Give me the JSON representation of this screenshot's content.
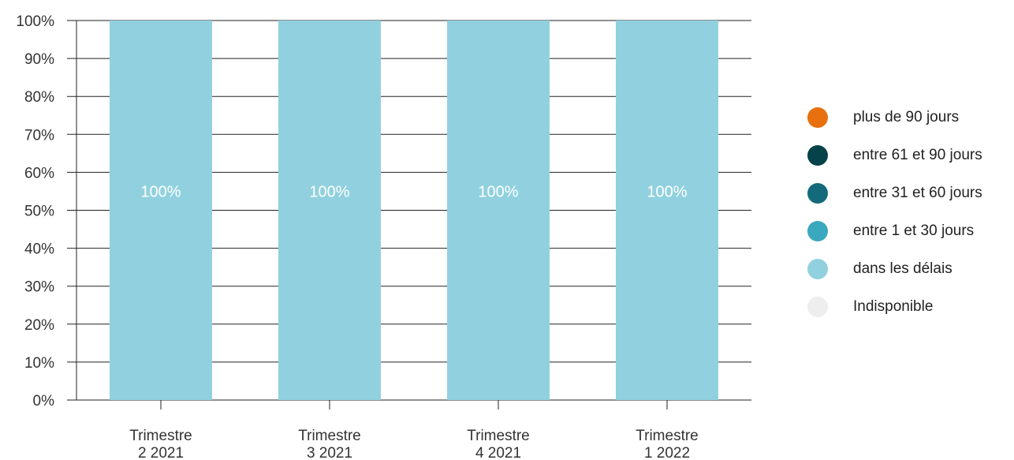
{
  "chart_data": {
    "type": "bar",
    "stacked": true,
    "categories": [
      [
        "Trimestre",
        "2 2021"
      ],
      [
        "Trimestre",
        "3 2021"
      ],
      [
        "Trimestre",
        "4 2021"
      ],
      [
        "Trimestre",
        "1 2022"
      ]
    ],
    "series": [
      {
        "name": "plus de 90 jours",
        "color": "#e8700f",
        "values": [
          0,
          0,
          0,
          0
        ]
      },
      {
        "name": "entre 61 et 90 jours",
        "color": "#06424a",
        "values": [
          0,
          0,
          0,
          0
        ]
      },
      {
        "name": "entre 31 et 60 jours",
        "color": "#136a7a",
        "values": [
          0,
          0,
          0,
          0
        ]
      },
      {
        "name": "entre 1 et 30 jours",
        "color": "#3aa8bf",
        "values": [
          0,
          0,
          0,
          0
        ]
      },
      {
        "name": "dans les délais",
        "color": "#91d1df",
        "values": [
          100,
          100,
          100,
          100
        ]
      },
      {
        "name": "Indisponible",
        "color": "#eeeeee",
        "values": [
          0,
          0,
          0,
          0
        ]
      }
    ],
    "data_labels": [
      "100%",
      "100%",
      "100%",
      "100%"
    ],
    "y_ticks": [
      "0%",
      "10%",
      "20%",
      "30%",
      "40%",
      "50%",
      "60%",
      "70%",
      "80%",
      "90%",
      "100%"
    ],
    "ylim": [
      0,
      100
    ],
    "grid": true,
    "legend_position": "right"
  }
}
